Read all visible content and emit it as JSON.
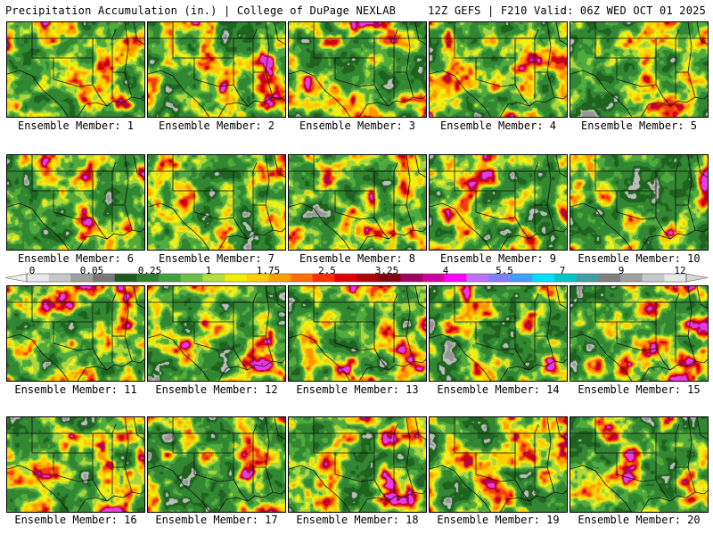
{
  "header": {
    "title_left": "Precipitation Accumulation (in.) | College of DuPage NEXLAB",
    "title_right": "12Z GEFS | F210 Valid: 06Z WED OCT 01 2025"
  },
  "members": [
    {
      "label": "Ensemble Member: 1"
    },
    {
      "label": "Ensemble Member: 2"
    },
    {
      "label": "Ensemble Member: 3"
    },
    {
      "label": "Ensemble Member: 4"
    },
    {
      "label": "Ensemble Member: 5"
    },
    {
      "label": "Ensemble Member: 6"
    },
    {
      "label": "Ensemble Member: 7"
    },
    {
      "label": "Ensemble Member: 8"
    },
    {
      "label": "Ensemble Member: 9"
    },
    {
      "label": "Ensemble Member: 10"
    },
    {
      "label": "Ensemble Member: 11"
    },
    {
      "label": "Ensemble Member: 12"
    },
    {
      "label": "Ensemble Member: 13"
    },
    {
      "label": "Ensemble Member: 14"
    },
    {
      "label": "Ensemble Member: 15"
    },
    {
      "label": "Ensemble Member: 16"
    },
    {
      "label": "Ensemble Member: 17"
    },
    {
      "label": "Ensemble Member: 18"
    },
    {
      "label": "Ensemble Member: 19"
    },
    {
      "label": "Ensemble Member: 20"
    }
  ],
  "colorbar": {
    "tick_labels": [
      "0",
      "0.05",
      "0.25",
      "1",
      "1.75",
      "2.5",
      "3.25",
      "4",
      "5.5",
      "7",
      "9",
      "12"
    ],
    "colors": [
      "#e8e8e8",
      "#c8c8c8",
      "#a0a0a0",
      "#787878",
      "#1e5a1e",
      "#2f7d2f",
      "#3fa03f",
      "#6cc04a",
      "#b2dd3c",
      "#f0f000",
      "#ffd000",
      "#ffa000",
      "#ff7000",
      "#ff3000",
      "#e00000",
      "#b00000",
      "#800010",
      "#a00060",
      "#d000a0",
      "#ff00ff",
      "#c070ff",
      "#8080ff",
      "#40a0ff",
      "#00e0ff",
      "#00c8c8",
      "#40a0a0",
      "#808080",
      "#a0a0a0",
      "#c8c8c8",
      "#e8e8e8"
    ]
  }
}
